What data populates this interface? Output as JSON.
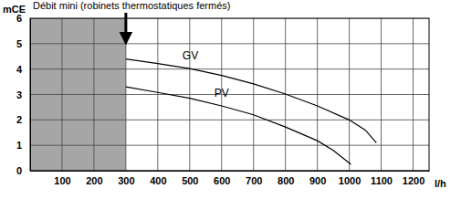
{
  "chart_data": {
    "type": "line",
    "y_label": "mCE",
    "x_label": "l/h",
    "xlim": [
      0,
      1250
    ],
    "ylim": [
      0,
      6
    ],
    "xticks": [
      100,
      200,
      300,
      400,
      500,
      600,
      700,
      800,
      900,
      1000,
      1100,
      1200
    ],
    "yticks": [
      0,
      1,
      2,
      3,
      4,
      5,
      6
    ],
    "grid": true,
    "shaded_x": [
      0,
      300
    ],
    "annotations": [
      {
        "text": "Débit mini (robinets thermostatiques fermés)",
        "x": 300
      }
    ],
    "series": [
      {
        "name": "GV",
        "color": "#000000",
        "x": [
          300,
          400,
          500,
          600,
          700,
          800,
          900,
          1000,
          1050,
          1085
        ],
        "values": [
          4.4,
          4.22,
          4.02,
          3.75,
          3.42,
          3.02,
          2.55,
          2.0,
          1.6,
          1.1
        ]
      },
      {
        "name": "PV",
        "color": "#000000",
        "x": [
          300,
          400,
          500,
          600,
          700,
          800,
          900,
          950,
          1005
        ],
        "values": [
          3.3,
          3.08,
          2.85,
          2.55,
          2.2,
          1.72,
          1.18,
          0.8,
          0.25
        ]
      }
    ]
  }
}
